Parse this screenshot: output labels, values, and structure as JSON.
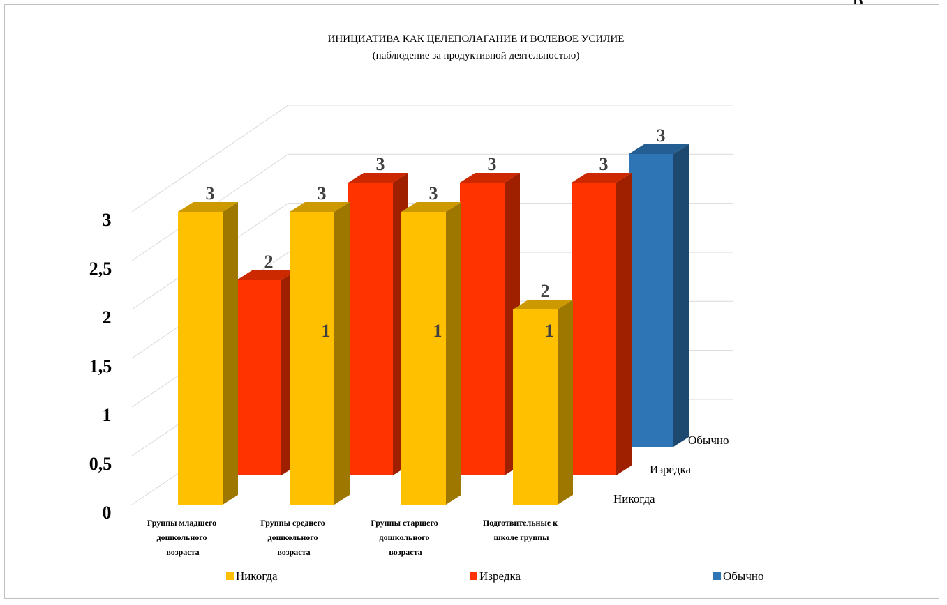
{
  "page": {
    "edge_text": "р"
  },
  "chart_data": {
    "type": "bar",
    "style": "3d-clustered-column",
    "title": "ИНИЦИАТИВА  КАК ЦЕЛЕПОЛАГАНИЕ И ВОЛЕВОЕ УСИЛИЕ",
    "subtitle": "(наблюдение за продуктивной  деятельностью)",
    "categories": [
      [
        "Группы младшего",
        "дошкольного",
        "возраста"
      ],
      [
        "Группы среднего",
        "дошкольного",
        "возраста"
      ],
      [
        "Группы старшего",
        "дошкольного",
        "возраста"
      ],
      [
        "Подготвительные к",
        "школе группы"
      ]
    ],
    "series": [
      {
        "name": "Никогда",
        "color": "#ffc000",
        "values": [
          3,
          3,
          3,
          2
        ]
      },
      {
        "name": "Изредка",
        "color": "#ff3300",
        "values": [
          2,
          3,
          3,
          3
        ]
      },
      {
        "name": "Обычно",
        "color": "#2e75b6",
        "values": [
          1,
          1,
          1,
          3
        ]
      }
    ],
    "value_labels": [
      [
        "3",
        "3",
        "3",
        "2"
      ],
      [
        "2",
        "3",
        "3",
        "3"
      ],
      [
        "1",
        "1",
        "1",
        "3"
      ]
    ],
    "y_ticks": [
      "0",
      "0,5",
      "1",
      "1,5",
      "2",
      "2,5",
      "3"
    ],
    "ylim": [
      0,
      3
    ],
    "depth_axis_labels": [
      "Никогда",
      "Изредка",
      "Обычно"
    ],
    "legend": {
      "position": "bottom",
      "items": [
        "Никогда",
        "Изредка",
        "Обычно"
      ]
    },
    "grid": true
  }
}
